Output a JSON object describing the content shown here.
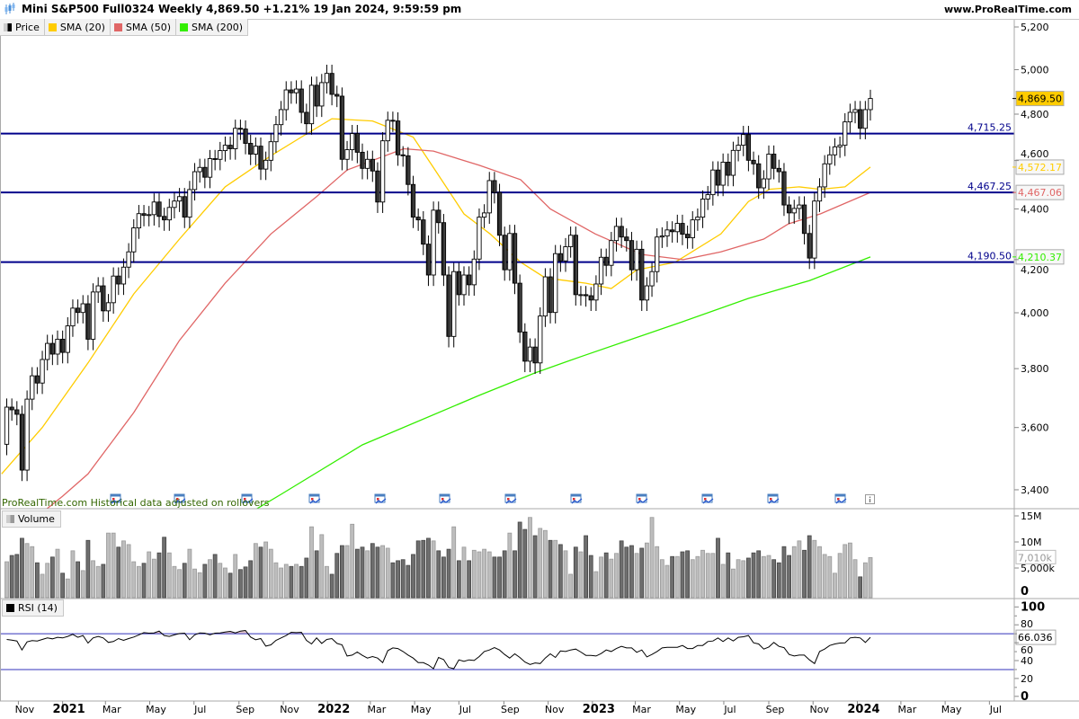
{
  "header": {
    "title": "Mini S&P500 Full0324 Weekly 4,869.50 +1.21% 19 Jan 2024, 9:59:59 pm",
    "website": "www.ProRealTime.com"
  },
  "legend": [
    {
      "label": "Price",
      "color": "#000000"
    },
    {
      "label": "SMA (20)",
      "color": "#ffcc00"
    },
    {
      "label": "SMA (50)",
      "color": "#e06666"
    },
    {
      "label": "SMA (200)",
      "color": "#33ee00"
    }
  ],
  "notice": "ProRealTime.com Historical data adjusted on rollovers",
  "chart_data": {
    "type": "candlestick",
    "interval": "weekly",
    "last_date": "2024-01-19",
    "y_scale": "log",
    "ylim": [
      3400,
      5200
    ],
    "first_open": 3545,
    "closes": [
      3668,
      3659,
      3644,
      3462,
      3695,
      3775,
      3750,
      3832,
      3889,
      3851,
      3904,
      3857,
      3952,
      4017,
      4001,
      4033,
      3904,
      4077,
      4100,
      4007,
      4037,
      4137,
      4107,
      4171,
      4230,
      4324,
      4381,
      4374,
      4377,
      4428,
      4370,
      4356,
      4406,
      4432,
      4450,
      4367,
      4479,
      4553,
      4571,
      4530,
      4608,
      4605,
      4642,
      4665,
      4650,
      4738,
      4735,
      4673,
      4627,
      4661,
      4564,
      4601,
      4680,
      4754,
      4820,
      4908,
      4895,
      4912,
      4808,
      4758,
      4929,
      4836,
      4941,
      4983,
      4888,
      4880,
      4605,
      4646,
      4715,
      4635,
      4567,
      4605,
      4556,
      4428,
      4684,
      4773,
      4770,
      4624,
      4620,
      4500,
      4367,
      4356,
      4260,
      4141,
      4395,
      4345,
      4141,
      3914,
      4154,
      4067,
      4141,
      4104,
      4202,
      4367,
      4384,
      4516,
      4467,
      4295,
      4161,
      4302,
      4110,
      3930,
      3826,
      3876,
      3820,
      3988,
      4134,
      4001,
      4223,
      4195,
      4250,
      4295,
      4067,
      4067,
      4063,
      4047,
      4107,
      4209,
      4178,
      4274,
      4330,
      4288,
      4274,
      4161,
      4240,
      4047,
      4100,
      4154,
      4288,
      4292,
      4316,
      4309,
      4342,
      4299,
      4285,
      4356,
      4367,
      4440,
      4458,
      4560,
      4497,
      4593,
      4538,
      4643,
      4665,
      4711,
      4601,
      4586,
      4486,
      4523,
      4627,
      4567,
      4553,
      4416,
      4384,
      4402,
      4416,
      4302,
      4206,
      4432,
      4490,
      4586,
      4624,
      4658,
      4665,
      4766,
      4808,
      4820,
      4738,
      4820,
      4869.5
    ],
    "price_ticks": [
      {
        "value": 5200,
        "label": "5,200"
      },
      {
        "value": 5000,
        "label": "5,000"
      },
      {
        "value": 4800,
        "label": "4,800"
      },
      {
        "value": 4600,
        "label": "4,600"
      },
      {
        "value": 4400,
        "label": "4,400"
      },
      {
        "value": 4200,
        "label": "4,200"
      },
      {
        "value": 4000,
        "label": "4,000"
      },
      {
        "value": 3800,
        "label": "3,800"
      },
      {
        "value": 3600,
        "label": "3,600"
      },
      {
        "value": 3400,
        "label": "3,400"
      }
    ],
    "last_price_label": "4,869.50",
    "last_price_color": "#ffcc00",
    "levels": [
      {
        "value": 4715.25,
        "label": "4,715.25"
      },
      {
        "value": 4467.25,
        "label": "4,467.25"
      },
      {
        "value": 4190.5,
        "label": "4,190.50"
      }
    ],
    "level_color": "#00008b",
    "sma": [
      {
        "name": "SMA (20)",
        "color": "#ffcc00",
        "last_label": "4,572.17",
        "points": [
          [
            "2020-10-09",
            3450
          ],
          [
            "2020-12-04",
            3600
          ],
          [
            "2021-02-05",
            3820
          ],
          [
            "2021-04-09",
            4070
          ],
          [
            "2021-06-11",
            4280
          ],
          [
            "2021-08-13",
            4490
          ],
          [
            "2021-10-15",
            4620
          ],
          [
            "2021-11-26",
            4700
          ],
          [
            "2022-01-07",
            4780
          ],
          [
            "2022-03-04",
            4770
          ],
          [
            "2022-04-29",
            4700
          ],
          [
            "2022-05-27",
            4570
          ],
          [
            "2022-07-08",
            4380
          ],
          [
            "2022-08-13",
            4300
          ],
          [
            "2022-09-24",
            4190
          ],
          [
            "2022-10-28",
            4130
          ],
          [
            "2022-12-23",
            4110
          ],
          [
            "2023-01-27",
            4090
          ],
          [
            "2023-03-03",
            4160
          ],
          [
            "2023-04-25",
            4190
          ],
          [
            "2023-06-27",
            4300
          ],
          [
            "2023-08-04",
            4430
          ],
          [
            "2023-09-02",
            4480
          ],
          [
            "2023-10-13",
            4490
          ],
          [
            "2023-11-11",
            4480
          ],
          [
            "2023-12-15",
            4490
          ],
          [
            "2024-01-19",
            4572.17
          ]
        ]
      },
      {
        "name": "SMA (50)",
        "color": "#e06666",
        "last_label": "4,467.06",
        "points": [
          [
            "2020-12-04",
            3330
          ],
          [
            "2021-01-01",
            3380
          ],
          [
            "2021-02-05",
            3450
          ],
          [
            "2021-04-09",
            3650
          ],
          [
            "2021-06-11",
            3900
          ],
          [
            "2021-08-13",
            4110
          ],
          [
            "2021-10-15",
            4300
          ],
          [
            "2021-12-17",
            4450
          ],
          [
            "2022-01-28",
            4560
          ],
          [
            "2022-04-16",
            4650
          ],
          [
            "2022-05-27",
            4640
          ],
          [
            "2022-07-29",
            4580
          ],
          [
            "2022-09-24",
            4520
          ],
          [
            "2022-11-04",
            4400
          ],
          [
            "2023-01-05",
            4300
          ],
          [
            "2023-03-10",
            4220
          ],
          [
            "2023-05-06",
            4200
          ],
          [
            "2023-06-27",
            4230
          ],
          [
            "2023-08-25",
            4280
          ],
          [
            "2023-09-28",
            4340
          ],
          [
            "2023-11-11",
            4380
          ],
          [
            "2024-01-19",
            4467.06
          ]
        ]
      },
      {
        "name": "SMA (200)",
        "color": "#33ee00",
        "last_label": "4,210.37",
        "points": [
          [
            "2021-09-17",
            3330
          ],
          [
            "2021-10-29",
            3386
          ],
          [
            "2022-02-18",
            3543
          ],
          [
            "2022-07-29",
            3708
          ],
          [
            "2022-10-14",
            3785
          ],
          [
            "2022-12-16",
            3842
          ],
          [
            "2023-05-06",
            3968
          ],
          [
            "2023-08-04",
            4053
          ],
          [
            "2023-10-27",
            4120
          ],
          [
            "2024-01-19",
            4210.37
          ]
        ]
      }
    ],
    "volume": {
      "label": "Volume",
      "unit": "M",
      "values": [
        6.2,
        7.4,
        7.6,
        10.7,
        9.7,
        9.1,
        6.0,
        3.8,
        5.9,
        7.1,
        8.6,
        4.0,
        2.9,
        8.3,
        6.2,
        4.5,
        10.3,
        6.4,
        5.3,
        5.7,
        11.7,
        11.7,
        9.0,
        10.2,
        9.5,
        6.2,
        5.3,
        5.9,
        8.1,
        6.7,
        7.9,
        10.9,
        7.9,
        5.3,
        4.7,
        5.9,
        8.6,
        4.8,
        4.1,
        5.7,
        6.6,
        7.6,
        5.9,
        5.0,
        4.0,
        7.6,
        4.7,
        5.2,
        6.4,
        9.7,
        9.0,
        10.0,
        8.6,
        6.0,
        5.0,
        5.7,
        5.3,
        5.7,
        5.3,
        6.9,
        12.9,
        8.3,
        11.4,
        5.3,
        3.8,
        7.8,
        9.3,
        9.3,
        13.4,
        8.6,
        9.0,
        8.3,
        9.7,
        9.0,
        9.3,
        8.8,
        6.0,
        6.4,
        6.6,
        5.5,
        7.6,
        10.2,
        10.3,
        10.7,
        10.2,
        8.3,
        7.1,
        8.6,
        12.9,
        6.4,
        9.0,
        6.4,
        8.4,
        8.1,
        8.6,
        8.1,
        7.1,
        7.1,
        8.3,
        11.7,
        8.3,
        13.8,
        12.4,
        14.7,
        11.2,
        12.6,
        12.2,
        10.3,
        10.3,
        9.5,
        8.3,
        3.8,
        9.0,
        8.1,
        11.2,
        7.4,
        4.3,
        7.1,
        7.9,
        6.7,
        7.8,
        10.2,
        9.0,
        9.3,
        7.8,
        8.8,
        9.8,
        14.7,
        9.1,
        6.6,
        5.5,
        7.2,
        7.2,
        8.1,
        8.3,
        6.6,
        7.2,
        8.4,
        7.8,
        7.8,
        10.7,
        5.7,
        7.9,
        4.8,
        6.6,
        6.4,
        6.9,
        7.9,
        8.3,
        7.2,
        7.4,
        6.6,
        6.0,
        9.1,
        7.4,
        9.1,
        10.2,
        8.4,
        11.2,
        10.3,
        9.1,
        7.6,
        7.2,
        4.0,
        7.8,
        9.5,
        9.8,
        6.6,
        3.3,
        6.0,
        7.01
      ],
      "ticks": [
        {
          "value": 15,
          "label": "15M"
        },
        {
          "value": 10,
          "label": "10M"
        },
        {
          "value": 5,
          "label": "5,000k"
        },
        {
          "value": 0,
          "label": "0",
          "bold": true
        }
      ],
      "last_label": "7,010k",
      "up_color": "#bdbdbd",
      "down_color": "#6e6e6e"
    },
    "rsi": {
      "label": "RSI (14)",
      "values": [
        63.6,
        62.9,
        61.9,
        51.9,
        60.9,
        62.3,
        61.9,
        63.6,
        65.3,
        64.3,
        66.0,
        65.3,
        67.0,
        69.3,
        66.0,
        68.0,
        59.6,
        65.3,
        67.0,
        65.3,
        60.3,
        61.3,
        64.6,
        62.6,
        64.6,
        66.3,
        68.7,
        71.3,
        70.7,
        71.0,
        73.0,
        68.0,
        67.0,
        68.7,
        70.3,
        70.7,
        63.3,
        68.7,
        71.0,
        70.7,
        68.7,
        70.7,
        71.0,
        72.0,
        72.7,
        71.0,
        73.0,
        73.7,
        66.3,
        63.3,
        64.6,
        56.2,
        57.6,
        62.6,
        65.3,
        68.0,
        71.7,
        71.3,
        71.7,
        62.6,
        58.6,
        65.3,
        59.2,
        63.6,
        64.6,
        59.2,
        57.6,
        45.1,
        46.1,
        49.5,
        45.8,
        42.8,
        44.5,
        42.8,
        37.7,
        51.2,
        54.2,
        53.5,
        50.2,
        46.1,
        42.8,
        37.7,
        37.7,
        35.1,
        31.0,
        43.5,
        41.1,
        32.4,
        31.0,
        40.8,
        39.1,
        40.8,
        40.1,
        44.5,
        50.2,
        51.9,
        54.5,
        51.9,
        46.8,
        42.8,
        47.5,
        43.5,
        38.4,
        35.7,
        37.4,
        36.7,
        42.8,
        47.5,
        43.5,
        50.8,
        50.2,
        51.9,
        52.9,
        49.5,
        45.8,
        45.8,
        45.1,
        47.8,
        51.9,
        50.2,
        53.5,
        55.9,
        54.2,
        54.2,
        49.2,
        51.9,
        44.1,
        46.8,
        50.2,
        54.2,
        54.9,
        54.9,
        54.9,
        56.9,
        53.5,
        53.5,
        56.9,
        56.9,
        61.3,
        61.9,
        65.3,
        61.3,
        65.3,
        61.9,
        66.0,
        66.6,
        68.0,
        59.9,
        58.6,
        52.9,
        55.2,
        60.3,
        55.9,
        54.5,
        46.8,
        45.1,
        46.1,
        46.1,
        40.8,
        36.7,
        50.2,
        52.9,
        56.9,
        58.6,
        59.6,
        59.9,
        65.3,
        66.0,
        65.3,
        60.3,
        66.036
      ],
      "levels": [
        70,
        30
      ],
      "ticks": [
        {
          "value": 100,
          "label": "100",
          "bold": true
        },
        {
          "value": 80,
          "label": "80"
        },
        {
          "value": 60,
          "label": "60"
        },
        {
          "value": 40,
          "label": "40"
        },
        {
          "value": 20,
          "label": "20"
        },
        {
          "value": 0,
          "label": "0",
          "bold": true
        }
      ],
      "last_label": "66.036",
      "line_color": "#000000",
      "level_color": "#3333bb",
      "overbought_fill": "#e3c6cc"
    },
    "x_labels": [
      {
        "label": "Nov",
        "date": "2020-11-01"
      },
      {
        "label": "2021",
        "date": "2021-01-01",
        "bold": true
      },
      {
        "label": "Mar",
        "date": "2021-03-01"
      },
      {
        "label": "May",
        "date": "2021-05-01"
      },
      {
        "label": "Jul",
        "date": "2021-07-01"
      },
      {
        "label": "Sep",
        "date": "2021-09-01"
      },
      {
        "label": "Nov",
        "date": "2021-11-01"
      },
      {
        "label": "2022",
        "date": "2022-01-01",
        "bold": true
      },
      {
        "label": "Mar",
        "date": "2022-03-01"
      },
      {
        "label": "May",
        "date": "2022-05-01"
      },
      {
        "label": "Jul",
        "date": "2022-07-01"
      },
      {
        "label": "Sep",
        "date": "2022-09-01"
      },
      {
        "label": "Nov",
        "date": "2022-11-01"
      },
      {
        "label": "2023",
        "date": "2023-01-01",
        "bold": true
      },
      {
        "label": "Mar",
        "date": "2023-03-01"
      },
      {
        "label": "May",
        "date": "2023-05-01"
      },
      {
        "label": "Jul",
        "date": "2023-07-01"
      },
      {
        "label": "Sep",
        "date": "2023-09-01"
      },
      {
        "label": "Nov",
        "date": "2023-11-01"
      },
      {
        "label": "2024",
        "date": "2024-01-01",
        "bold": true
      },
      {
        "label": "Mar",
        "date": "2024-03-01"
      },
      {
        "label": "May",
        "date": "2024-05-01"
      },
      {
        "label": "Jul",
        "date": "2024-07-01"
      }
    ],
    "event_icon": "calendar-event-icon",
    "info_icon": "info-icon"
  }
}
